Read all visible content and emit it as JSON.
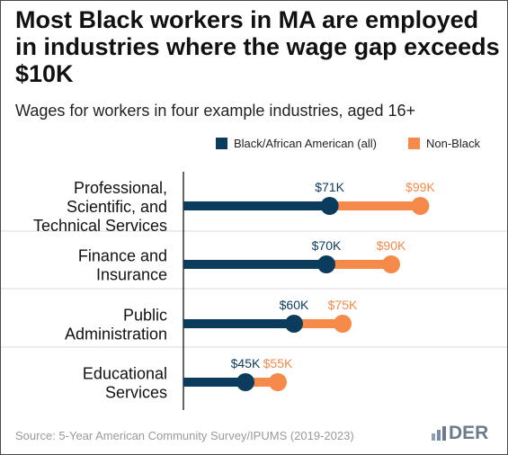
{
  "header": {
    "title": "Most Black workers in MA are employed in industries where the wage gap exceeds $10K",
    "subtitle": "Wages for workers in four example industries, aged 16+"
  },
  "legend": [
    {
      "label": "Black/African American (all)",
      "color": "#0b3c5d"
    },
    {
      "label": "Non-Black",
      "color": "#f58a4b"
    }
  ],
  "footer": {
    "source": "Source: 5-Year American Community Survey/IPUMS (2019-2023)",
    "logo_text": "DER"
  },
  "colors": {
    "black_series": "#0b3c5d",
    "nonblack_series": "#f58a4b",
    "separator": "#d9d9d9",
    "axis_line": "#333333"
  },
  "chart_data": {
    "type": "dumbbell",
    "categories": [
      [
        "Professional,",
        "Scientific, and",
        "Technical Services"
      ],
      [
        "Finance and",
        "Insurance"
      ],
      [
        "Public",
        "Administration"
      ],
      [
        "Educational",
        "Services"
      ]
    ],
    "series": [
      {
        "name": "Black/African American (all)",
        "values": [
          71,
          70,
          60,
          45
        ],
        "labels": [
          "$71K",
          "$70K",
          "$60K",
          "$45K"
        ]
      },
      {
        "name": "Non-Black",
        "values": [
          99,
          90,
          75,
          55
        ],
        "labels": [
          "$99K",
          "$90K",
          "$75K",
          "$55K"
        ]
      }
    ],
    "x_unit": "thousands of dollars",
    "xlim": [
      0,
      100
    ],
    "grid": false,
    "legend_position": "top-right"
  }
}
